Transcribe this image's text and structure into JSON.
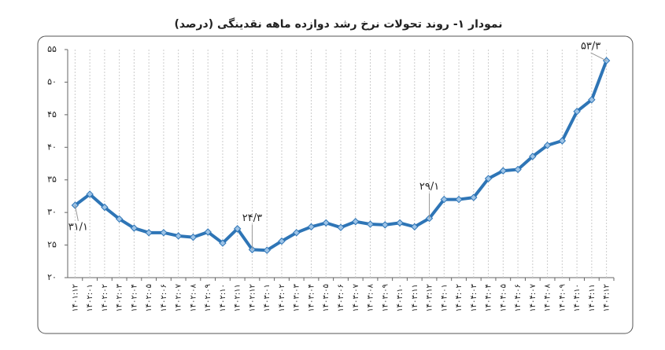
{
  "chart_data": {
    "type": "line",
    "title": "نمودار ۱- روند تحولات نرخ رشد دوازده ماهه نقدینگی (درصد)",
    "categories": [
      "۱۴۰۱:۱۲",
      "۱۴۰۲:۰۱",
      "۱۴۰۲:۰۲",
      "۱۴۰۲:۰۳",
      "۱۴۰۲:۰۴",
      "۱۴۰۲:۰۵",
      "۱۴۰۲:۰۶",
      "۱۴۰۲:۰۷",
      "۱۴۰۲:۰۸",
      "۱۴۰۲:۰۹",
      "۱۴۰۲:۱۰",
      "۱۴۰۲:۱۱",
      "۱۴۰۲:۱۲",
      "۱۴۰۳:۰۱",
      "۱۴۰۳:۰۲",
      "۱۴۰۳:۰۳",
      "۱۴۰۳:۰۴",
      "۱۴۰۳:۰۵",
      "۱۴۰۳:۰۶",
      "۱۴۰۳:۰۷",
      "۱۴۰۳:۰۸",
      "۱۴۰۳:۰۹",
      "۱۴۰۳:۱۰",
      "۱۴۰۳:۱۱",
      "۱۴۰۳:۱۲",
      "۱۴۰۴:۰۱",
      "۱۴۰۴:۰۲",
      "۱۴۰۴:۰۳",
      "۱۴۰۴:۰۴",
      "۱۴۰۴:۰۵",
      "۱۴۰۴:۰۶",
      "۱۴۰۴:۰۷",
      "۱۴۰۴:۰۸",
      "۱۴۰۴:۰۹",
      "۱۴۰۴:۱۰",
      "۱۴۰۴:۱۱",
      "۱۴۰۴:۱۲"
    ],
    "values": [
      31.1,
      32.8,
      30.8,
      29.0,
      27.6,
      26.9,
      26.9,
      26.4,
      26.2,
      27.0,
      25.3,
      27.5,
      24.3,
      24.2,
      25.6,
      26.9,
      27.8,
      28.4,
      27.7,
      28.6,
      28.2,
      28.1,
      28.4,
      27.8,
      29.1,
      32.0,
      32.0,
      32.3,
      35.2,
      36.4,
      36.6,
      38.6,
      40.3,
      41.0,
      45.5,
      47.3,
      53.3
    ],
    "value_labels": [
      "۳۱/۱",
      null,
      null,
      null,
      null,
      null,
      null,
      null,
      null,
      null,
      null,
      null,
      "۲۴/۳",
      null,
      null,
      null,
      null,
      null,
      null,
      null,
      null,
      null,
      null,
      null,
      "۲۹/۱",
      null,
      null,
      null,
      null,
      null,
      null,
      null,
      null,
      null,
      null,
      null,
      "۵۳/۳"
    ],
    "color": "#2e75b6",
    "ylim": [
      20,
      55
    ],
    "yticks": [
      {
        "value": 20,
        "label": "۲۰"
      },
      {
        "value": 25,
        "label": "۲۵"
      },
      {
        "value": 30,
        "label": "۳۰"
      },
      {
        "value": 35,
        "label": "۳۵"
      },
      {
        "value": 40,
        "label": "۴۰"
      },
      {
        "value": 45,
        "label": "۴۵"
      },
      {
        "value": 50,
        "label": "۵۰"
      },
      {
        "value": 55,
        "label": "۵۵"
      }
    ],
    "grid": true
  }
}
